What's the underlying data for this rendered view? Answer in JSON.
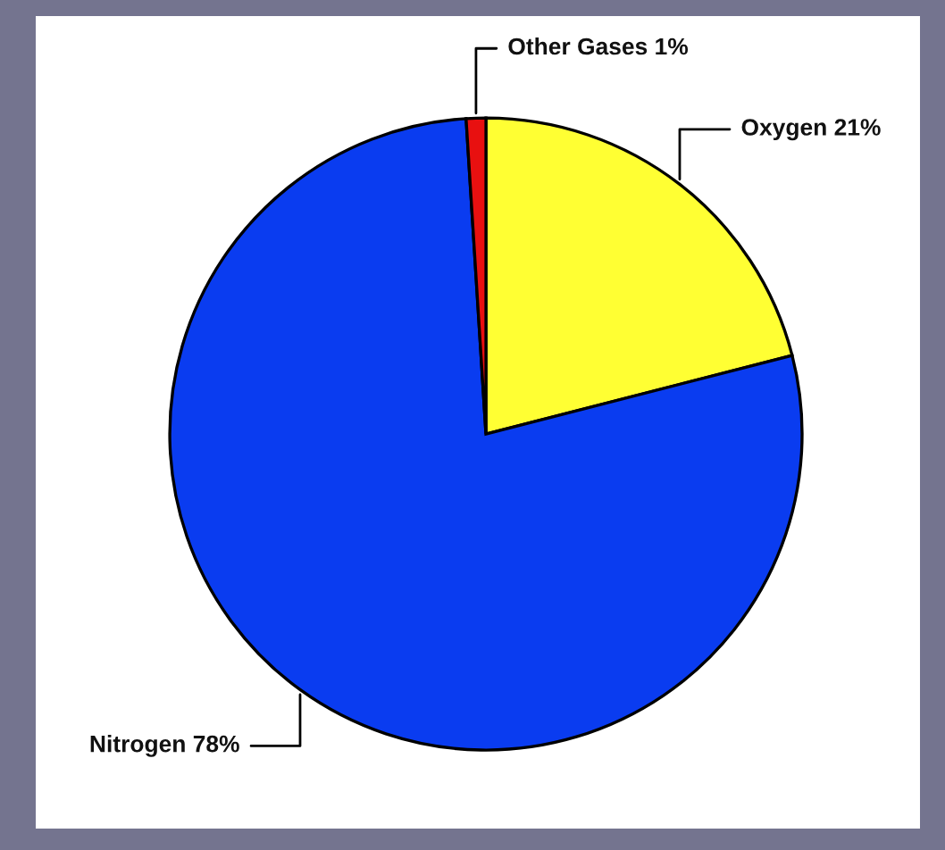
{
  "chart_data": {
    "type": "pie",
    "categories": [
      "Oxygen",
      "Nitrogen",
      "Other Gases"
    ],
    "values": [
      21,
      78,
      1
    ],
    "value_labels": [
      "21%",
      "78%",
      "1%"
    ],
    "colors": [
      "#ffff33",
      "#0a3cf0",
      "#e81010"
    ]
  }
}
